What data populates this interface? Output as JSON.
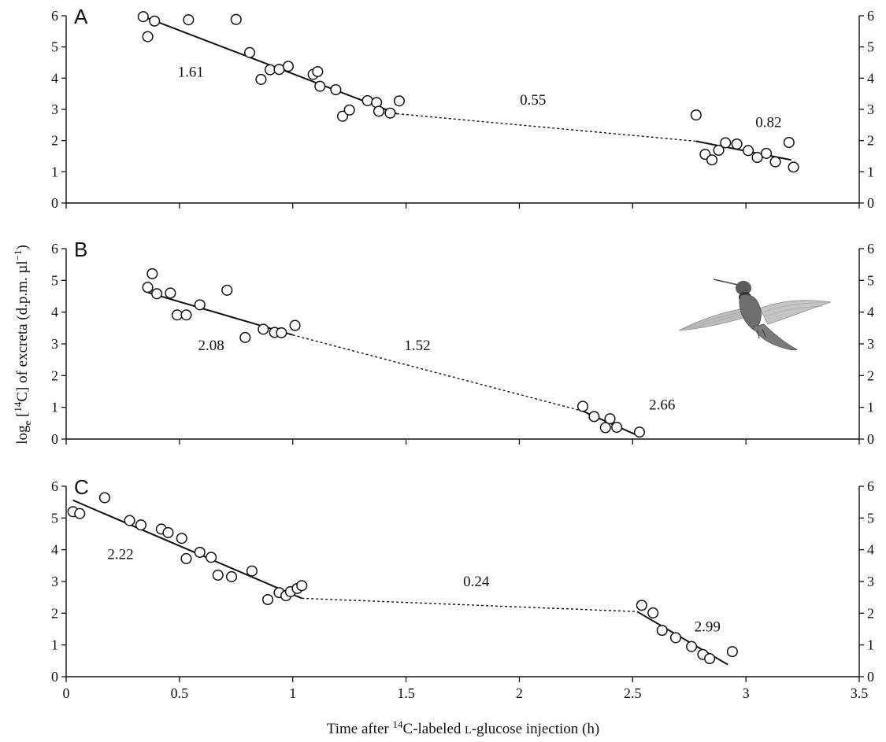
{
  "chart_data": {
    "type": "scatter",
    "ylabel": "log",
    "ylabel_sub": "e",
    "ylabel_rest": " [",
    "ylabel_sup": "14",
    "ylabel_rest2": "C] of excreta (d.p.m. µl",
    "ylabel_sup2": "−1",
    "ylabel_end": ")",
    "xlabel_pre": "Time after ",
    "xlabel_sup": "14",
    "xlabel_mid": "C-labeled ",
    "xlabel_sc": "L",
    "xlabel_post": "-glucose injection (h)",
    "xlim": [
      0,
      3.5
    ],
    "ylim": [
      0,
      6
    ],
    "x_ticks": [
      "0",
      "0.5",
      "1",
      "1.5",
      "2",
      "2.5",
      "3",
      "3.5"
    ],
    "y_ticks": [
      "0",
      "1",
      "2",
      "3",
      "4",
      "5",
      "6"
    ],
    "panels": [
      {
        "label": "A",
        "points": [
          [
            0.34,
            5.97
          ],
          [
            0.36,
            5.33
          ],
          [
            0.39,
            5.83
          ],
          [
            0.54,
            5.87
          ],
          [
            0.75,
            5.88
          ],
          [
            0.81,
            4.82
          ],
          [
            0.86,
            3.96
          ],
          [
            0.9,
            4.27
          ],
          [
            0.94,
            4.28
          ],
          [
            0.98,
            4.38
          ],
          [
            1.09,
            4.12
          ],
          [
            1.11,
            4.21
          ],
          [
            1.12,
            3.74
          ],
          [
            1.19,
            3.63
          ],
          [
            1.22,
            2.78
          ],
          [
            1.25,
            2.98
          ],
          [
            1.33,
            3.28
          ],
          [
            1.37,
            3.22
          ],
          [
            1.38,
            2.94
          ],
          [
            1.43,
            2.88
          ],
          [
            1.47,
            3.27
          ],
          [
            2.78,
            2.82
          ],
          [
            2.82,
            1.56
          ],
          [
            2.85,
            1.38
          ],
          [
            2.88,
            1.69
          ],
          [
            2.91,
            1.93
          ],
          [
            2.96,
            1.89
          ],
          [
            3.01,
            1.68
          ],
          [
            3.05,
            1.46
          ],
          [
            3.09,
            1.59
          ],
          [
            3.13,
            1.32
          ],
          [
            3.19,
            1.94
          ],
          [
            3.21,
            1.15
          ]
        ],
        "fit_segments": [
          {
            "x": [
              0.36,
              1.46
            ],
            "y": [
              5.92,
              2.86
            ],
            "style": "solid"
          },
          {
            "x": [
              1.46,
              2.78
            ],
            "y": [
              2.86,
              1.98
            ],
            "style": "dotted"
          },
          {
            "x": [
              2.78,
              3.2
            ],
            "y": [
              1.98,
              1.38
            ],
            "style": "solid"
          }
        ],
        "annotations": [
          {
            "text": "1.61",
            "x": 0.55,
            "y": 4.2
          },
          {
            "text": "0.55",
            "x": 2.06,
            "y": 3.3
          },
          {
            "text": "0.82",
            "x": 3.1,
            "y": 2.58
          }
        ]
      },
      {
        "label": "B",
        "points": [
          [
            0.36,
            4.78
          ],
          [
            0.38,
            5.21
          ],
          [
            0.4,
            4.58
          ],
          [
            0.46,
            4.6
          ],
          [
            0.49,
            3.91
          ],
          [
            0.53,
            3.91
          ],
          [
            0.59,
            4.23
          ],
          [
            0.71,
            4.69
          ],
          [
            0.79,
            3.2
          ],
          [
            0.87,
            3.46
          ],
          [
            0.92,
            3.36
          ],
          [
            0.95,
            3.35
          ],
          [
            1.01,
            3.58
          ],
          [
            2.28,
            1.03
          ],
          [
            2.33,
            0.71
          ],
          [
            2.38,
            0.36
          ],
          [
            2.4,
            0.64
          ],
          [
            2.43,
            0.37
          ],
          [
            2.53,
            0.22
          ]
        ],
        "fit_segments": [
          {
            "x": [
              0.36,
              1.0
            ],
            "y": [
              4.62,
              3.28
            ],
            "style": "solid"
          },
          {
            "x": [
              1.0,
              2.28
            ],
            "y": [
              3.28,
              0.88
            ],
            "style": "dotted"
          },
          {
            "x": [
              2.28,
              2.52
            ],
            "y": [
              0.88,
              0.12
            ],
            "style": "solid"
          }
        ],
        "annotations": [
          {
            "text": "2.08",
            "x": 0.64,
            "y": 2.95
          },
          {
            "text": "1.52",
            "x": 1.55,
            "y": 2.95
          },
          {
            "text": "2.66",
            "x": 2.63,
            "y": 1.08
          }
        ]
      },
      {
        "label": "C",
        "points": [
          [
            0.03,
            5.2
          ],
          [
            0.06,
            5.14
          ],
          [
            0.17,
            5.64
          ],
          [
            0.28,
            4.92
          ],
          [
            0.33,
            4.78
          ],
          [
            0.42,
            4.65
          ],
          [
            0.45,
            4.54
          ],
          [
            0.51,
            4.36
          ],
          [
            0.53,
            3.72
          ],
          [
            0.59,
            3.92
          ],
          [
            0.64,
            3.76
          ],
          [
            0.67,
            3.2
          ],
          [
            0.73,
            3.15
          ],
          [
            0.82,
            3.33
          ],
          [
            0.89,
            2.43
          ],
          [
            0.94,
            2.65
          ],
          [
            0.97,
            2.55
          ],
          [
            0.99,
            2.68
          ],
          [
            1.02,
            2.78
          ],
          [
            1.04,
            2.87
          ],
          [
            2.54,
            2.25
          ],
          [
            2.59,
            2.01
          ],
          [
            2.63,
            1.46
          ],
          [
            2.69,
            1.23
          ],
          [
            2.76,
            0.95
          ],
          [
            2.81,
            0.7
          ],
          [
            2.84,
            0.57
          ],
          [
            2.94,
            0.79
          ]
        ],
        "fit_segments": [
          {
            "x": [
              0.03,
              1.04
            ],
            "y": [
              5.56,
              2.47
            ],
            "style": "solid"
          },
          {
            "x": [
              1.04,
              2.52
            ],
            "y": [
              2.47,
              2.05
            ],
            "style": "dotted"
          },
          {
            "x": [
              2.52,
              2.92
            ],
            "y": [
              2.05,
              0.38
            ],
            "style": "solid"
          }
        ],
        "annotations": [
          {
            "text": "2.22",
            "x": 0.24,
            "y": 3.85
          },
          {
            "text": "0.24",
            "x": 1.81,
            "y": 3.0
          },
          {
            "text": "2.99",
            "x": 2.83,
            "y": 1.58
          }
        ]
      }
    ],
    "grid": false,
    "legend": "none",
    "colors": {
      "axis": "#111111",
      "marker_fill": "#ffffff",
      "marker_stroke": "#111111",
      "fit_line": "#111111",
      "bird_body": "#555555",
      "bird_wing": "#b8b8b8"
    }
  }
}
